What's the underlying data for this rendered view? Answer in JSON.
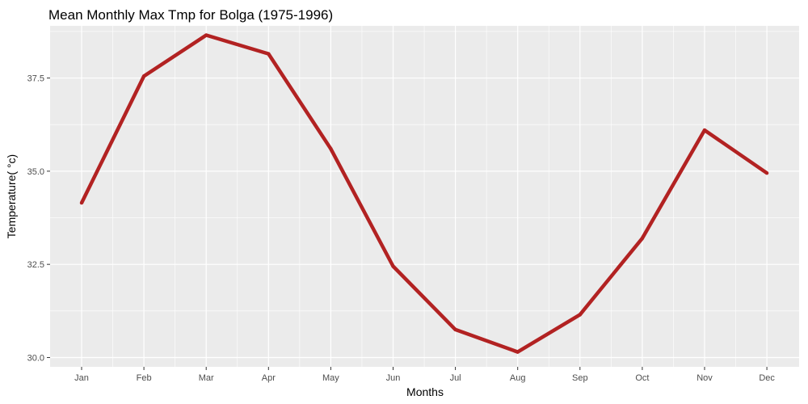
{
  "chart_data": {
    "type": "line",
    "title": "Mean Monthly Max Tmp for Bolga (1975-1996)",
    "xlabel": "Months",
    "ylabel": "Temperature( °c)",
    "categories": [
      "Jan",
      "Feb",
      "Mar",
      "Apr",
      "May",
      "Jun",
      "Jul",
      "Aug",
      "Sep",
      "Oct",
      "Nov",
      "Dec"
    ],
    "values": [
      34.15,
      37.55,
      38.65,
      38.15,
      35.6,
      32.45,
      30.75,
      30.15,
      31.15,
      33.2,
      36.1,
      34.95
    ],
    "ylim": [
      29.75,
      38.9
    ],
    "yticks": [
      30.0,
      32.5,
      35.0,
      37.5
    ],
    "ytick_labels": [
      "30.0",
      "32.5",
      "35.0",
      "37.5"
    ],
    "grid": true,
    "colors": {
      "line": "#b22222",
      "panel_bg": "#ebebeb",
      "grid": "#ffffff"
    }
  }
}
